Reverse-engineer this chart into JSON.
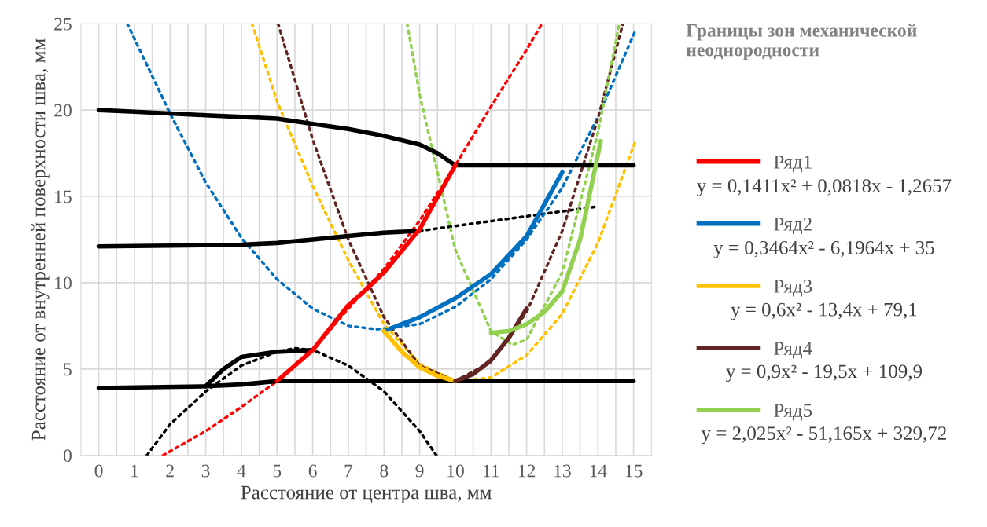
{
  "chart_data": {
    "type": "line",
    "xlabel": "Расстояние от центра шва, мм",
    "ylabel": "Расстояние от внутренней поверхности шва, мм",
    "legend_title": "Границы зон механической неоднородности",
    "xlim": [
      -0.5,
      15.5
    ],
    "ylim": [
      0,
      25
    ],
    "xticks": [
      0,
      {
        "value": 0.5,
        "label": null
      },
      1,
      {
        "value": 1.5,
        "label": null
      },
      2,
      {
        "value": 2.5,
        "label": null
      },
      3,
      {
        "value": 3.5,
        "label": null
      },
      4,
      {
        "value": 4.5,
        "label": null
      },
      5,
      {
        "value": 5.5,
        "label": null
      },
      6,
      {
        "value": 6.5,
        "label": null
      },
      7,
      {
        "value": 7.5,
        "label": null
      },
      8,
      {
        "value": 8.5,
        "label": null
      },
      9,
      {
        "value": 9.5,
        "label": null
      },
      10,
      {
        "value": 10.5,
        "label": null
      },
      11,
      {
        "value": 11.5,
        "label": null
      },
      12,
      {
        "value": 12.5,
        "label": null
      },
      13,
      {
        "value": 13.5,
        "label": null
      },
      14,
      {
        "value": 14.5,
        "label": null
      },
      15
    ],
    "yticks": [
      0,
      5,
      10,
      15,
      20,
      25
    ],
    "grid": true,
    "legend": "right",
    "marker": "none",
    "annotations": [
      "y = 0,1411x² + 0,0818x - 1,2657",
      "y = 0,3464x² - 6,1964x + 35",
      "y = 0,6x² - 13,4x + 79,1",
      "y = 0,9x² - 19,5x + 109,9",
      "y = 2,025x² - 51,165x + 329,72"
    ],
    "series": [
      {
        "color": "#000000",
        "line_style": "solid",
        "x": [
          0,
          1,
          2,
          3,
          4,
          5,
          6,
          7,
          8,
          9,
          9.5,
          10,
          15
        ],
        "values": [
          20,
          19.9,
          19.8,
          19.7,
          19.6,
          19.5,
          19.2,
          18.9,
          18.5,
          18.0,
          17.5,
          16.8,
          16.8
        ]
      },
      {
        "color": "#000000",
        "line_style": "solid",
        "x": [
          0,
          2,
          4,
          5,
          6,
          7,
          8,
          9
        ],
        "values": [
          12.1,
          12.15,
          12.2,
          12.3,
          12.5,
          12.7,
          12.9,
          13.0
        ]
      },
      {
        "color": "#000000",
        "line_style": "dotted",
        "x": [
          9,
          13.95
        ],
        "values": [
          13.0,
          14.4
        ]
      },
      {
        "color": "#000000",
        "line_style": "solid",
        "x": [
          0,
          3,
          4,
          5,
          6,
          15
        ],
        "values": [
          3.9,
          4.0,
          4.1,
          4.3,
          4.3,
          4.3
        ]
      },
      {
        "color": "#000000",
        "line_style": "solid",
        "x": [
          3,
          3.5,
          4,
          5,
          6
        ],
        "values": [
          4.0,
          5.0,
          5.7,
          6.0,
          6.1
        ]
      },
      {
        "color": "#000000",
        "line_style": "dotted",
        "x": [
          1.35,
          2,
          3,
          4,
          5,
          5.5,
          6,
          7,
          8,
          9,
          9.47
        ],
        "values": [
          0,
          1.8,
          3.7,
          5.2,
          6.0,
          6.2,
          6.1,
          5.2,
          3.7,
          1.4,
          0
        ]
      },
      {
        "color": "#ff0000",
        "line_style": "dotted",
        "x": [
          1.8,
          3,
          4,
          5,
          6,
          7,
          8,
          9,
          10,
          11,
          12,
          12.43
        ],
        "values": [
          0,
          1.4,
          2.8,
          4.3,
          6.1,
          8.5,
          10.8,
          13.6,
          16.8,
          20.2,
          23.5,
          25
        ]
      },
      {
        "color": "#0070c0",
        "line_style": "dotted",
        "x": [
          0.8,
          2,
          3,
          4,
          5,
          6,
          7,
          7.8,
          9,
          10,
          11,
          12,
          13,
          14,
          15.05
        ],
        "values": [
          25,
          19.8,
          15.8,
          12.6,
          10.2,
          8.5,
          7.5,
          7.3,
          7.6,
          8.6,
          10.2,
          12.5,
          15.5,
          19.6,
          24.6
        ]
      },
      {
        "color": "#ffc000",
        "line_style": "dotted",
        "x": [
          4.3,
          5,
          6,
          7,
          8,
          9,
          10,
          11,
          12,
          13,
          14,
          15.05
        ],
        "values": [
          25,
          20.5,
          15.6,
          11.3,
          7.6,
          5.3,
          4.3,
          4.5,
          5.8,
          8.2,
          12.3,
          18.2
        ]
      },
      {
        "color": "#632523",
        "line_style": "dotted",
        "x": [
          5.03,
          6,
          7,
          8,
          9,
          10,
          11,
          12,
          13,
          14,
          14.7
        ],
        "values": [
          25,
          18.3,
          12.5,
          8.0,
          5.2,
          4.3,
          5.4,
          8.3,
          13.0,
          19.5,
          25
        ]
      },
      {
        "color": "#92d050",
        "line_style": "dotted",
        "x": [
          8.65,
          9,
          10,
          11,
          11.6,
          12,
          13,
          14,
          14.6
        ],
        "values": [
          25,
          20.9,
          11.9,
          7.2,
          6.4,
          6.7,
          10.6,
          18.7,
          25
        ]
      },
      {
        "name": "Ряд1",
        "color": "#ff0000",
        "line_style": "solid",
        "x": [
          5,
          6,
          7,
          7.5,
          8,
          9,
          10
        ],
        "values": [
          4.3,
          6.1,
          8.7,
          9.6,
          10.6,
          13.1,
          16.8
        ]
      },
      {
        "name": "Ряд2",
        "color": "#0070c0",
        "line_style": "solid",
        "x": [
          8,
          9,
          10,
          11,
          12,
          13
        ],
        "values": [
          7.2,
          8.0,
          9.1,
          10.5,
          12.7,
          16.4
        ]
      },
      {
        "name": "Ряд3",
        "color": "#ffc000",
        "line_style": "solid",
        "x": [
          8,
          8.5,
          9,
          9.5,
          10
        ],
        "values": [
          7.2,
          6.0,
          5.1,
          4.6,
          4.3
        ]
      },
      {
        "name": "Ряд4",
        "color": "#632523",
        "line_style": "solid",
        "x": [
          10,
          10.5,
          11,
          11.5,
          12
        ],
        "values": [
          4.3,
          4.7,
          5.5,
          6.8,
          8.5
        ]
      },
      {
        "name": "Ряд5",
        "color": "#92d050",
        "line_style": "solid",
        "x": [
          11,
          11.5,
          12,
          12.5,
          13,
          13.5,
          14.08
        ],
        "values": [
          7.1,
          7.2,
          7.6,
          8.3,
          9.5,
          12.5,
          18.2
        ]
      }
    ]
  }
}
